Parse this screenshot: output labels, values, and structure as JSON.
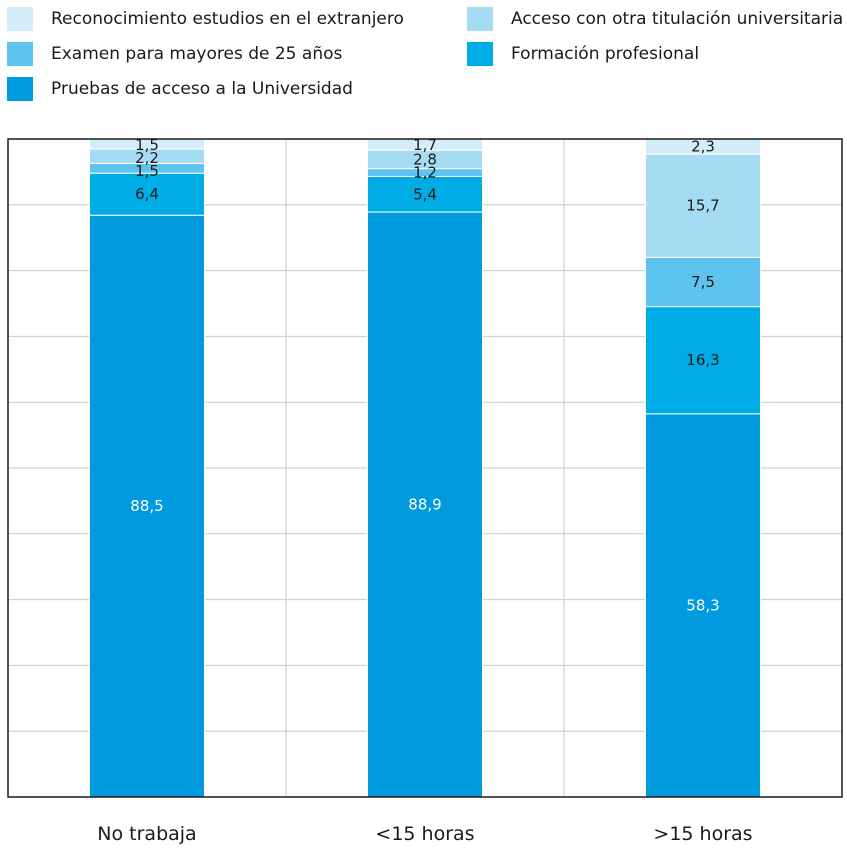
{
  "chart_data": {
    "type": "bar",
    "stacked": true,
    "normalized_percent": true,
    "categories": [
      "No trabaja",
      "<15 horas",
      ">15 horas"
    ],
    "series": [
      {
        "name": "Pruebas de acceso a la Universidad",
        "color": "#009ade",
        "label_color": "#ffffff",
        "values": [
          88.5,
          88.9,
          58.3
        ],
        "labels": [
          "88,5",
          "88,9",
          "58,3"
        ]
      },
      {
        "name": "Formación profesional",
        "color": "#00ace6",
        "label_color": "#1a1a1a",
        "values": [
          6.4,
          5.4,
          16.3
        ],
        "labels": [
          "6,4",
          "5,4",
          "16,3"
        ]
      },
      {
        "name": "Examen para mayores de 25 años",
        "color": "#5ec4ee",
        "label_color": "#1a1a1a",
        "values": [
          1.5,
          1.2,
          7.5
        ],
        "labels": [
          "1,5",
          "1,2",
          "7,5"
        ]
      },
      {
        "name": "Acceso con otra titulación universitaria",
        "color": "#a6dbf4",
        "label_color": "#1a1a1a",
        "values": [
          2.2,
          2.8,
          15.7
        ],
        "labels": [
          "2,2",
          "2,8",
          "15,7"
        ]
      },
      {
        "name": "Reconocimiento estudios en el extranjero",
        "color": "#d5edfa",
        "label_color": "#1a1a1a",
        "values": [
          1.5,
          1.7,
          2.3
        ],
        "labels": [
          "1,5",
          "1,7",
          "2,3"
        ]
      }
    ],
    "ylim": [
      0,
      100
    ],
    "grid": true,
    "legend_position": "top",
    "legend_order": [
      "Reconocimiento estudios en el extranjero",
      "Acceso con otra titulación universitaria",
      "Examen para mayores de 25 años",
      "Formación profesional",
      "Pruebas de acceso a la Universidad"
    ]
  }
}
